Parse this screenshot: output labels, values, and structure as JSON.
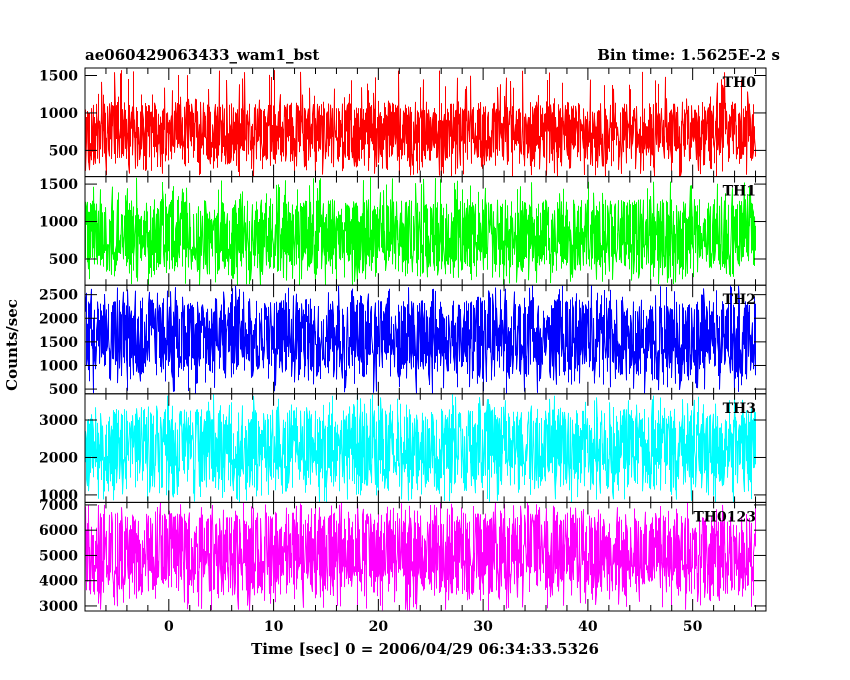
{
  "chart_data": {
    "type": "line",
    "title": "ae060429063433_wam1_bst",
    "subtitle": "Bin time: 1.5625E-2 s",
    "xlabel": "Time [sec] 0 = 2006/04/29 06:34:33.5326",
    "ylabel": "Counts/sec",
    "xlim": [
      -8,
      57
    ],
    "x_data_range": [
      -8,
      56
    ],
    "xticks": [
      0,
      10,
      20,
      30,
      40,
      50
    ],
    "grid": false,
    "panels": [
      {
        "name": "TH0",
        "color": "#ff0000",
        "ylim": [
          150,
          1600
        ],
        "yticks": [
          500,
          1000,
          1500
        ],
        "typical_range": [
          200,
          1150
        ],
        "peak": 1600,
        "mean": 700
      },
      {
        "name": "TH1",
        "color": "#00ff00",
        "ylim": [
          150,
          1600
        ],
        "yticks": [
          500,
          1000,
          1500
        ],
        "typical_range": [
          200,
          1300
        ],
        "peak": 1600,
        "mean": 700
      },
      {
        "name": "TH2",
        "color": "#0000ff",
        "ylim": [
          400,
          2700
        ],
        "yticks": [
          500,
          1000,
          1500,
          2000,
          2500
        ],
        "typical_range": [
          550,
          2400
        ],
        "peak": 2700,
        "mean": 1450
      },
      {
        "name": "TH3",
        "color": "#00ffff",
        "ylim": [
          800,
          3700
        ],
        "yticks": [
          1000,
          2000,
          3000
        ],
        "typical_range": [
          900,
          3300
        ],
        "peak": 3700,
        "mean": 2100
      },
      {
        "name": "TH0123",
        "color": "#ff00ff",
        "ylim": [
          2800,
          7100
        ],
        "yticks": [
          3000,
          4000,
          5000,
          6000,
          7000
        ],
        "typical_range": [
          3100,
          6700
        ],
        "peak": 7100,
        "mean": 4800
      }
    ]
  }
}
